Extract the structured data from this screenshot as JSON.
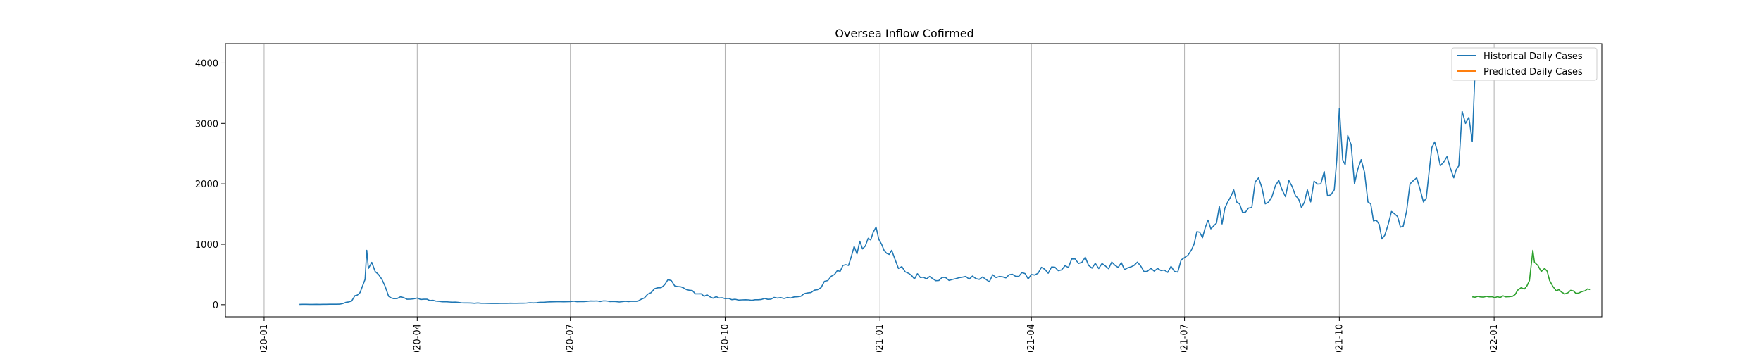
{
  "chart_data": {
    "type": "line",
    "title": "Oversea Inflow Cofirmed",
    "xlabel": "",
    "ylabel": "",
    "x_axis_type": "date",
    "xlim": [
      "2019-12-09",
      "2022-03-06"
    ],
    "ylim": [
      -200,
      4320
    ],
    "x_ticks": [
      "2020-01",
      "2020-04",
      "2020-07",
      "2020-10",
      "2021-01",
      "2021-04",
      "2021-07",
      "2021-10",
      "2022-01"
    ],
    "y_ticks": [
      0,
      1000,
      2000,
      3000,
      4000
    ],
    "x_tick_label_rotation": 90,
    "grid": "x-axis only",
    "legend_position": "top-right",
    "legend": [
      "Historical Daily Cases",
      "Predicted Daily Cases"
    ],
    "colors": {
      "historical": "#1f77b4",
      "predicted": "#ff7f0e",
      "third": "#2ca02c"
    },
    "series": [
      {
        "name": "Historical Daily Cases",
        "color": "#1f77b4",
        "points": [
          [
            "2020-01-22",
            5
          ],
          [
            "2020-02-05",
            6
          ],
          [
            "2020-02-15",
            8
          ],
          [
            "2020-02-22",
            60
          ],
          [
            "2020-02-24",
            150
          ],
          [
            "2020-02-27",
            200
          ],
          [
            "2020-03-01",
            420
          ],
          [
            "2020-03-02",
            900
          ],
          [
            "2020-03-03",
            600
          ],
          [
            "2020-03-05",
            700
          ],
          [
            "2020-03-07",
            550
          ],
          [
            "2020-03-09",
            500
          ],
          [
            "2020-03-11",
            420
          ],
          [
            "2020-03-13",
            300
          ],
          [
            "2020-03-15",
            140
          ],
          [
            "2020-03-18",
            100
          ],
          [
            "2020-03-22",
            130
          ],
          [
            "2020-03-26",
            90
          ],
          [
            "2020-04-01",
            110
          ],
          [
            "2020-04-05",
            90
          ],
          [
            "2020-04-12",
            60
          ],
          [
            "2020-04-20",
            45
          ],
          [
            "2020-05-01",
            30
          ],
          [
            "2020-05-15",
            20
          ],
          [
            "2020-06-01",
            25
          ],
          [
            "2020-06-15",
            40
          ],
          [
            "2020-07-01",
            50
          ],
          [
            "2020-07-15",
            60
          ],
          [
            "2020-08-01",
            50
          ],
          [
            "2020-08-10",
            55
          ],
          [
            "2020-08-18",
            200
          ],
          [
            "2020-08-22",
            280
          ],
          [
            "2020-08-26",
            330
          ],
          [
            "2020-08-30",
            400
          ],
          [
            "2020-09-03",
            300
          ],
          [
            "2020-09-08",
            250
          ],
          [
            "2020-09-15",
            180
          ],
          [
            "2020-09-22",
            130
          ],
          [
            "2020-10-01",
            100
          ],
          [
            "2020-10-15",
            80
          ],
          [
            "2020-11-01",
            110
          ],
          [
            "2020-11-15",
            140
          ],
          [
            "2020-11-25",
            250
          ],
          [
            "2020-12-01",
            400
          ],
          [
            "2020-12-05",
            500
          ],
          [
            "2020-12-10",
            650
          ],
          [
            "2020-12-15",
            800
          ],
          [
            "2020-12-20",
            1050
          ],
          [
            "2020-12-25",
            1100
          ],
          [
            "2020-12-28",
            1200
          ],
          [
            "2021-01-02",
            1000
          ],
          [
            "2021-01-05",
            850
          ],
          [
            "2021-01-08",
            900
          ],
          [
            "2021-01-12",
            600
          ],
          [
            "2021-01-18",
            520
          ],
          [
            "2021-01-25",
            450
          ],
          [
            "2021-02-05",
            400
          ],
          [
            "2021-02-15",
            430
          ],
          [
            "2021-03-01",
            420
          ],
          [
            "2021-03-15",
            460
          ],
          [
            "2021-04-01",
            500
          ],
          [
            "2021-04-15",
            620
          ],
          [
            "2021-05-01",
            700
          ],
          [
            "2021-05-15",
            640
          ],
          [
            "2021-06-01",
            650
          ],
          [
            "2021-06-15",
            600
          ],
          [
            "2021-06-25",
            550
          ],
          [
            "2021-07-01",
            780
          ],
          [
            "2021-07-05",
            900
          ],
          [
            "2021-07-10",
            1200
          ],
          [
            "2021-07-15",
            1400
          ],
          [
            "2021-07-20",
            1350
          ],
          [
            "2021-07-25",
            1600
          ],
          [
            "2021-08-01",
            1700
          ],
          [
            "2021-08-08",
            1600
          ],
          [
            "2021-08-14",
            2100
          ],
          [
            "2021-08-20",
            1700
          ],
          [
            "2021-08-28",
            1900
          ],
          [
            "2021-09-05",
            1800
          ],
          [
            "2021-09-12",
            1900
          ],
          [
            "2021-09-20",
            2000
          ],
          [
            "2021-09-28",
            1900
          ],
          [
            "2021-10-01",
            3250
          ],
          [
            "2021-10-03",
            2400
          ],
          [
            "2021-10-06",
            2800
          ],
          [
            "2021-10-10",
            2000
          ],
          [
            "2021-10-14",
            2400
          ],
          [
            "2021-10-18",
            1700
          ],
          [
            "2021-10-23",
            1400
          ],
          [
            "2021-10-28",
            1150
          ],
          [
            "2021-11-03",
            1500
          ],
          [
            "2021-11-08",
            1300
          ],
          [
            "2021-11-12",
            2000
          ],
          [
            "2021-11-16",
            2100
          ],
          [
            "2021-11-20",
            1700
          ],
          [
            "2021-11-25",
            2600
          ],
          [
            "2021-11-30",
            2300
          ],
          [
            "2021-12-04",
            2450
          ],
          [
            "2021-12-08",
            2100
          ],
          [
            "2021-12-11",
            2300
          ],
          [
            "2021-12-13",
            3200
          ],
          [
            "2021-12-15",
            3000
          ],
          [
            "2021-12-17",
            3100
          ],
          [
            "2021-12-19",
            2700
          ],
          [
            "2021-12-21",
            4100
          ],
          [
            "2021-12-23",
            3900
          ],
          [
            "2021-12-25",
            4050
          ],
          [
            "2021-12-26",
            3950
          ]
        ]
      },
      {
        "name": "Predicted Daily Cases",
        "color": "#ff7f0e",
        "points": []
      },
      {
        "name": "",
        "color": "#2ca02c",
        "points": [
          [
            "2021-12-19",
            130
          ],
          [
            "2021-12-24",
            128
          ],
          [
            "2021-12-29",
            130
          ],
          [
            "2022-01-03",
            132
          ],
          [
            "2022-01-08",
            130
          ],
          [
            "2022-01-12",
            140
          ],
          [
            "2022-01-15",
            240
          ],
          [
            "2022-01-17",
            280
          ],
          [
            "2022-01-19",
            260
          ],
          [
            "2022-01-22",
            400
          ],
          [
            "2022-01-24",
            900
          ],
          [
            "2022-01-25",
            700
          ],
          [
            "2022-01-27",
            650
          ],
          [
            "2022-01-29",
            550
          ],
          [
            "2022-01-31",
            600
          ],
          [
            "2022-02-03",
            400
          ],
          [
            "2022-02-05",
            300
          ],
          [
            "2022-02-07",
            230
          ],
          [
            "2022-02-10",
            210
          ],
          [
            "2022-02-14",
            200
          ],
          [
            "2022-02-17",
            230
          ],
          [
            "2022-02-20",
            190
          ],
          [
            "2022-02-24",
            230
          ],
          [
            "2022-02-27",
            250
          ]
        ]
      }
    ]
  }
}
